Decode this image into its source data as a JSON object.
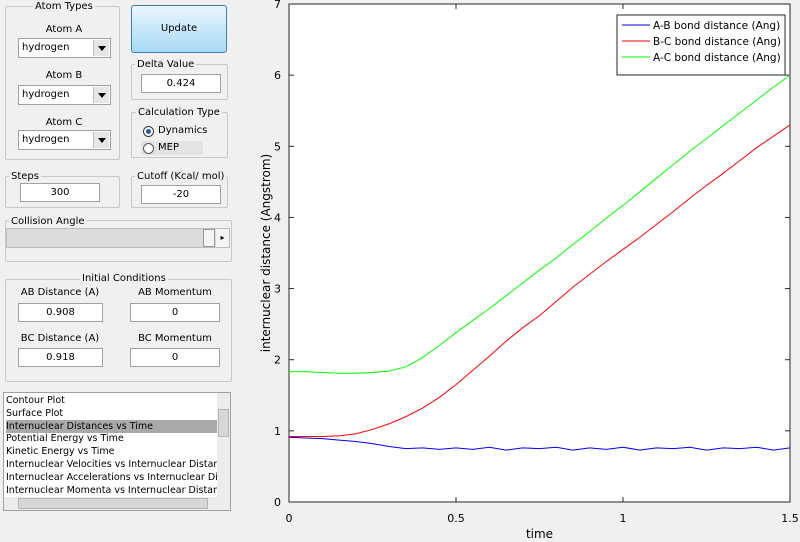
{
  "controls": {
    "atom_types": {
      "title": "Atom Types",
      "atoms": [
        {
          "label": "Atom A",
          "value": "hydrogen"
        },
        {
          "label": "Atom B",
          "value": "hydrogen"
        },
        {
          "label": "Atom C",
          "value": "hydrogen"
        }
      ]
    },
    "update_button": "Update",
    "delta": {
      "label": "Delta Value",
      "value": "0.424"
    },
    "calculation_type": {
      "title": "Calculation Type",
      "options": [
        "Dynamics",
        "MEP"
      ]
    },
    "steps": {
      "label": "Steps",
      "value": "300"
    },
    "cutoff": {
      "label": "Cutoff (Kcal/ mol)",
      "value": "-20"
    },
    "collision_angle": {
      "label": "Collision Angle"
    },
    "initial_conditions": {
      "title": "Initial Conditions",
      "fields": [
        {
          "label": "AB Distance (A)",
          "value": "0.908"
        },
        {
          "label": "AB Momentum",
          "value": "0"
        },
        {
          "label": "BC Distance (A)",
          "value": "0.918"
        },
        {
          "label": "BC Momentum",
          "value": "0"
        }
      ]
    },
    "plot_list": {
      "items": [
        "Contour Plot",
        "Surface Plot",
        "Internuclear Distances vs Time",
        "Potential Energy vs Time",
        "Kinetic Energy vs Time",
        "Internuclear Velocities vs Internuclear Distance",
        "Internuclear Accelerations vs Internuclear Distance",
        "Internuclear Momenta vs Internuclear Distance"
      ],
      "selected": "Internuclear Distances vs Time"
    }
  },
  "chart_data": {
    "type": "line",
    "x_label": "time",
    "y_label": "internuclear distance (Angstrom)",
    "xlim": [
      0,
      1.5
    ],
    "ylim": [
      0,
      7
    ],
    "xticks": [
      0,
      0.5,
      1,
      1.5
    ],
    "yticks": [
      0,
      1,
      2,
      3,
      4,
      5,
      6,
      7
    ],
    "legend": "upper right",
    "x": [
      0,
      0.05,
      0.1,
      0.15,
      0.2,
      0.25,
      0.3,
      0.35,
      0.4,
      0.45,
      0.5,
      0.55,
      0.6,
      0.65,
      0.7,
      0.75,
      0.8,
      0.85,
      0.9,
      0.95,
      1,
      1.05,
      1.1,
      1.15,
      1.2,
      1.25,
      1.3,
      1.35,
      1.4,
      1.45,
      1.5
    ],
    "series": [
      {
        "name": "A-B bond distance (Ang)",
        "color": "#0000ff",
        "values": [
          0.91,
          0.9,
          0.89,
          0.87,
          0.85,
          0.82,
          0.78,
          0.75,
          0.76,
          0.74,
          0.76,
          0.74,
          0.77,
          0.73,
          0.76,
          0.75,
          0.77,
          0.73,
          0.76,
          0.74,
          0.77,
          0.73,
          0.76,
          0.75,
          0.77,
          0.73,
          0.76,
          0.75,
          0.77,
          0.73,
          0.76
        ]
      },
      {
        "name": "B-C bond distance (Ang)",
        "color": "#ff0000",
        "values": [
          0.92,
          0.92,
          0.92,
          0.93,
          0.96,
          1.02,
          1.1,
          1.2,
          1.32,
          1.47,
          1.65,
          1.85,
          2.05,
          2.26,
          2.45,
          2.62,
          2.82,
          3.02,
          3.2,
          3.38,
          3.55,
          3.72,
          3.9,
          4.08,
          4.27,
          4.45,
          4.62,
          4.8,
          4.98,
          5.14,
          5.3
        ]
      },
      {
        "name": "A-C bond distance (Ang)",
        "color": "#00ff00",
        "values": [
          1.83,
          1.83,
          1.82,
          1.81,
          1.81,
          1.82,
          1.84,
          1.9,
          2.03,
          2.2,
          2.38,
          2.55,
          2.72,
          2.9,
          3.08,
          3.26,
          3.43,
          3.62,
          3.8,
          3.99,
          4.17,
          4.36,
          4.55,
          4.74,
          4.93,
          5.11,
          5.29,
          5.47,
          5.65,
          5.83,
          6.0
        ]
      }
    ]
  }
}
